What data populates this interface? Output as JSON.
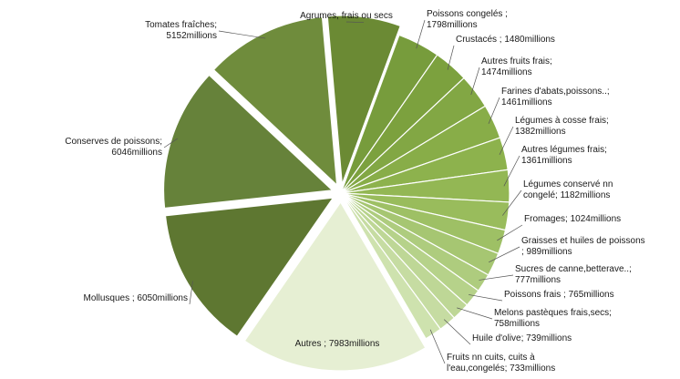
{
  "chart_data": {
    "type": "pie",
    "unit": "millions",
    "slices": [
      {
        "label": "Agrumes, frais ou secs",
        "display": "Agrumes, frais ou secs",
        "value": 3100,
        "color": "#6b8a34"
      },
      {
        "label": "Poissons congelés",
        "display": "Poissons congelés ;\n1798millions",
        "value": 1798,
        "color": "#779c3c"
      },
      {
        "label": "Crustacés",
        "display": "Crustacés ; 1480millions",
        "value": 1480,
        "color": "#7ca13e"
      },
      {
        "label": "Autres fruits frais",
        "display": "Autres fruits frais;\n1474millions",
        "value": 1474,
        "color": "#82a744"
      },
      {
        "label": "Farines d'abats,poissons..",
        "display": "Farines d'abats,poissons..;\n1461millions",
        "value": 1461,
        "color": "#88ad48"
      },
      {
        "label": "Légumes à cosse frais",
        "display": "Légumes à cosse frais;\n1382millions",
        "value": 1382,
        "color": "#8db24d"
      },
      {
        "label": "Autres légumes frais",
        "display": "Autres légumes frais;\n1361millions",
        "value": 1361,
        "color": "#93b754"
      },
      {
        "label": "Légumes conservé nn congelé",
        "display": "Légumes conservé nn\ncongelé; 1182millions",
        "value": 1182,
        "color": "#99bc5c"
      },
      {
        "label": "Fromages",
        "display": "Fromages; 1024millions",
        "value": 1024,
        "color": "#9ec065"
      },
      {
        "label": "Graisses et huiles de poissons",
        "display": "Graisses et huiles de poissons\n; 989millions",
        "value": 989,
        "color": "#a6c672"
      },
      {
        "label": "Sucres de canne,betterave..",
        "display": "Sucres de canne,betterave..;\n777millions",
        "value": 777,
        "color": "#aecc7e"
      },
      {
        "label": "Poissons frais",
        "display": "Poissons frais ; 765millions",
        "value": 765,
        "color": "#b6d28a"
      },
      {
        "label": "Melons pastèques frais,secs",
        "display": "Melons pastèques frais,secs;\n758millions",
        "value": 758,
        "color": "#bed796"
      },
      {
        "label": "Huile d'olive",
        "display": "Huile d'olive; 739millions",
        "value": 739,
        "color": "#c6dca2"
      },
      {
        "label": "Fruits nn cuits, cuits à l'eau,congelés",
        "display": "Fruits nn cuits, cuits à\nl'eau,congelés; 733millions",
        "value": 733,
        "color": "#cee2ae"
      },
      {
        "label": "Autres",
        "display": "Autres ; 7983millions",
        "value": 7983,
        "color": "#e6efd3"
      },
      {
        "label": "Mollusques",
        "display": "Mollusques ; 6050millions",
        "value": 6050,
        "color": "#5e7731"
      },
      {
        "label": "Conserves de poissons",
        "display": "Conserves de poissons;\n6046millions",
        "value": 6046,
        "color": "#66823a"
      },
      {
        "label": "Tomates fraîches",
        "display": "Tomates fraîches;\n5152millions",
        "value": 5152,
        "color": "#6f8c3c"
      }
    ]
  }
}
